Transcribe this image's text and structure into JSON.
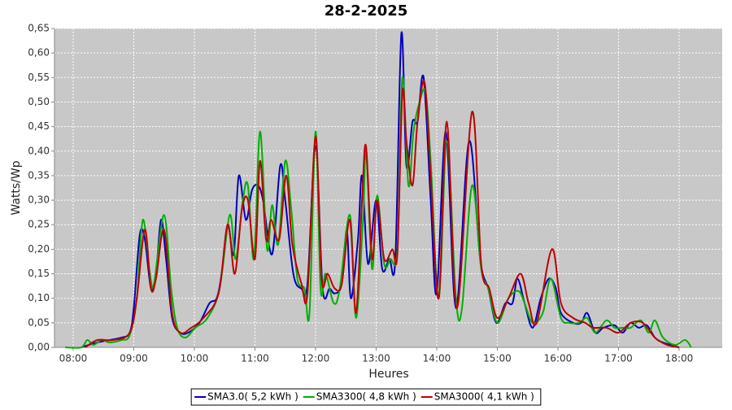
{
  "chart_data": {
    "type": "line",
    "title": "28-2-2025",
    "x_label": "Heures",
    "y_label": "Watts/Wp",
    "xlim": [
      461.5,
      1122.7
    ],
    "ylim": [
      0,
      0.65
    ],
    "grid": true,
    "legend": "bottom",
    "xticks": [
      {
        "value": 480,
        "label": "08:00"
      },
      {
        "value": 540,
        "label": "09:00"
      },
      {
        "value": 600,
        "label": "10:00"
      },
      {
        "value": 660,
        "label": "11:00"
      },
      {
        "value": 720,
        "label": "12:00"
      },
      {
        "value": 780,
        "label": "13:00"
      },
      {
        "value": 840,
        "label": "14:00"
      },
      {
        "value": 900,
        "label": "15:00"
      },
      {
        "value": 960,
        "label": "16:00"
      },
      {
        "value": 1020,
        "label": "17:00"
      },
      {
        "value": 1080,
        "label": "18:00"
      }
    ],
    "yticks": [
      {
        "value": 0,
        "label": "0,00"
      },
      {
        "value": 0.05,
        "label": "0,05"
      },
      {
        "value": 0.1,
        "label": "0,10"
      },
      {
        "value": 0.15,
        "label": "0,15"
      },
      {
        "value": 0.2,
        "label": "0,20"
      },
      {
        "value": 0.25,
        "label": "0,25"
      },
      {
        "value": 0.3,
        "label": "0,30"
      },
      {
        "value": 0.35,
        "label": "0,35"
      },
      {
        "value": 0.4,
        "label": "0,40"
      },
      {
        "value": 0.45,
        "label": "0,45"
      },
      {
        "value": 0.5,
        "label": "0,50"
      },
      {
        "value": 0.55,
        "label": "0,55"
      },
      {
        "value": 0.6,
        "label": "0,60"
      },
      {
        "value": 0.65,
        "label": "0,65"
      }
    ],
    "series": [
      {
        "name": "SMA3.0( 5,2 kWh )",
        "color": "#0000c0",
        "x": [
          488,
          504,
          528,
          536,
          540,
          546,
          551,
          557,
          562,
          567,
          572,
          578,
          586,
          594,
          605,
          615,
          622,
          627,
          633,
          639,
          644,
          651,
          657,
          663,
          668,
          677,
          685,
          690,
          698,
          706,
          712,
          720,
          727,
          734,
          739,
          746,
          751,
          755,
          762,
          766,
          772,
          780,
          786,
          793,
          799,
          805,
          810,
          816,
          821,
          827,
          834,
          840,
          849,
          859,
          872,
          883,
          891,
          899,
          908,
          915,
          920,
          927,
          935,
          943,
          951,
          958,
          963,
          975,
          983,
          989,
          997,
          1005,
          1016,
          1024,
          1032,
          1040,
          1048,
          1056,
          1064,
          1080
        ],
        "values": [
          0,
          0.01,
          0.02,
          0.03,
          0.08,
          0.23,
          0.22,
          0.12,
          0.15,
          0.26,
          0.18,
          0.06,
          0.03,
          0.03,
          0.05,
          0.09,
          0.1,
          0.15,
          0.25,
          0.19,
          0.35,
          0.26,
          0.32,
          0.33,
          0.3,
          0.19,
          0.37,
          0.3,
          0.15,
          0.12,
          0.13,
          0.41,
          0.12,
          0.12,
          0.11,
          0.13,
          0.24,
          0.1,
          0.22,
          0.35,
          0.17,
          0.3,
          0.16,
          0.18,
          0.18,
          0.64,
          0.37,
          0.46,
          0.46,
          0.55,
          0.3,
          0.11,
          0.44,
          0.08,
          0.42,
          0.18,
          0.12,
          0.05,
          0.09,
          0.09,
          0.14,
          0.09,
          0.04,
          0.1,
          0.14,
          0.12,
          0.07,
          0.05,
          0.05,
          0.07,
          0.03,
          0.04,
          0.045,
          0.03,
          0.05,
          0.04,
          0.045,
          0.02,
          0.01,
          0
        ]
      },
      {
        "name": "SMA3300( 4,8 kWh )",
        "color": "#00b000",
        "x": [
          472,
          488,
          494,
          500,
          508,
          516,
          528,
          536,
          543,
          549,
          556,
          560,
          570,
          577,
          583,
          591,
          601,
          613,
          625,
          635,
          641,
          648,
          653,
          659,
          665,
          672,
          677,
          683,
          690,
          696,
          702,
          709,
          714,
          720,
          725,
          730,
          738,
          744,
          754,
          760,
          767,
          770,
          776,
          781,
          788,
          794,
          801,
          806,
          812,
          817,
          823,
          829,
          834,
          842,
          850,
          859,
          865,
          875,
          884,
          891,
          900,
          911,
          921,
          927,
          935,
          945,
          953,
          963,
          971,
          981,
          989,
          997,
          1008,
          1016,
          1024,
          1032,
          1042,
          1050,
          1056,
          1064,
          1076,
          1086,
          1092
        ],
        "values": [
          0,
          0,
          0.015,
          0.005,
          0.015,
          0.01,
          0.015,
          0.025,
          0.1,
          0.26,
          0.15,
          0.13,
          0.27,
          0.12,
          0.04,
          0.02,
          0.04,
          0.06,
          0.12,
          0.27,
          0.18,
          0.3,
          0.33,
          0.18,
          0.44,
          0.2,
          0.29,
          0.21,
          0.38,
          0.28,
          0.14,
          0.12,
          0.07,
          0.44,
          0.12,
          0.15,
          0.09,
          0.12,
          0.27,
          0.06,
          0.26,
          0.4,
          0.16,
          0.31,
          0.17,
          0.18,
          0.2,
          0.55,
          0.33,
          0.44,
          0.5,
          0.52,
          0.38,
          0.1,
          0.42,
          0.1,
          0.08,
          0.33,
          0.16,
          0.12,
          0.05,
          0.1,
          0.115,
          0.09,
          0.05,
          0.07,
          0.14,
          0.06,
          0.05,
          0.05,
          0.06,
          0.03,
          0.055,
          0.04,
          0.04,
          0.04,
          0.055,
          0.03,
          0.055,
          0.02,
          0.005,
          0.015,
          0
        ]
      },
      {
        "name": "SMA3000( 4,1 kWh )",
        "color": "#c00000",
        "x": [
          492,
          504,
          520,
          536,
          543,
          551,
          557,
          562,
          570,
          578,
          586,
          597,
          609,
          624,
          633,
          640,
          647,
          653,
          660,
          665,
          671,
          676,
          684,
          691,
          697,
          706,
          712,
          720,
          726,
          732,
          739,
          746,
          754,
          760,
          766,
          770,
          776,
          781,
          788,
          796,
          801,
          806,
          810,
          816,
          821,
          828,
          834,
          842,
          850,
          860,
          875,
          884,
          892,
          900,
          911,
          923,
          931,
          939,
          954,
          963,
          975,
          987,
          995,
          1008,
          1020,
          1032,
          1044,
          1056,
          1068,
          1080
        ],
        "values": [
          0,
          0.015,
          0.015,
          0.03,
          0.1,
          0.24,
          0.12,
          0.14,
          0.24,
          0.07,
          0.03,
          0.04,
          0.06,
          0.11,
          0.25,
          0.15,
          0.28,
          0.3,
          0.18,
          0.38,
          0.22,
          0.26,
          0.22,
          0.35,
          0.21,
          0.13,
          0.11,
          0.43,
          0.14,
          0.15,
          0.12,
          0.13,
          0.26,
          0.07,
          0.3,
          0.41,
          0.18,
          0.3,
          0.18,
          0.2,
          0.19,
          0.52,
          0.42,
          0.33,
          0.46,
          0.54,
          0.35,
          0.1,
          0.46,
          0.08,
          0.48,
          0.17,
          0.12,
          0.06,
          0.1,
          0.15,
          0.09,
          0.05,
          0.2,
          0.09,
          0.06,
          0.05,
          0.04,
          0.04,
          0.03,
          0.05,
          0.05,
          0.02,
          0.005,
          0
        ]
      }
    ]
  }
}
